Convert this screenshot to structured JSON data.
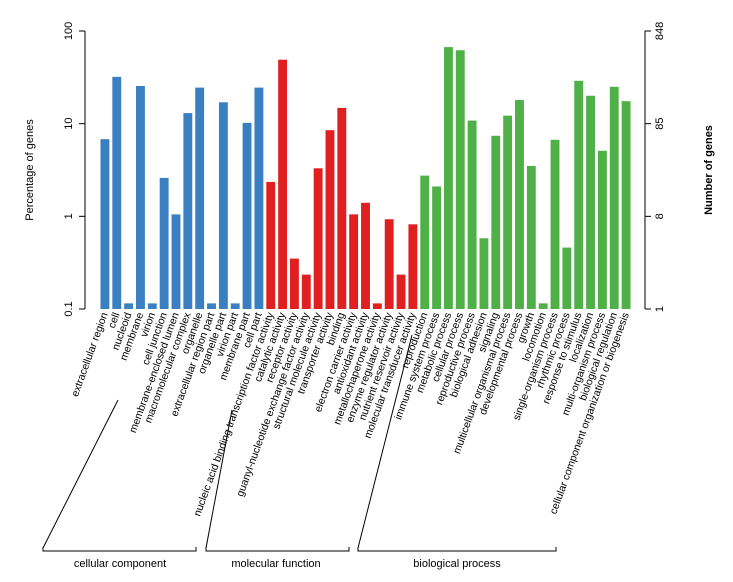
{
  "chart_data": {
    "type": "bar",
    "y_scale": "log",
    "ylabel_left": "Percentage of genes",
    "ylabel_right": "Number of genes",
    "ylim": [
      0.1,
      100
    ],
    "left_ticks": [
      "100",
      "10",
      "1",
      "0.1"
    ],
    "right_ticks": [
      "848",
      "85",
      "8",
      "1"
    ],
    "groups": [
      {
        "name": "cellular component",
        "color": "#3a7fc1",
        "categories": [
          "extracellular region",
          "cell",
          "nucleoid",
          "membrane",
          "virion",
          "cell junction",
          "membrane-enclosed lumen",
          "macromolecular complex",
          "organelle",
          "extracellular region part",
          "organelle part",
          "virion part",
          "membrane part",
          "cell part"
        ],
        "values": [
          6.8,
          32,
          0.115,
          25.5,
          0.115,
          2.6,
          1.05,
          13,
          24.5,
          0.115,
          17,
          0.115,
          10.2,
          24.5
        ]
      },
      {
        "name": "molecular function",
        "color": "#e02020",
        "categories": [
          "nucleic acid binding transcription factor activity",
          "catalytic activity",
          "receptor activity",
          "guanyl-nucleotide exchange factor activity",
          "structural molecule activity",
          "transporter activity",
          "binding",
          "electron carrier activity",
          "antioxidant activity",
          "metallochaperone activity",
          "enzyme regulator activity",
          "nutrient reservoir activity",
          "molecular transducer activity"
        ],
        "values": [
          2.35,
          49,
          0.35,
          0.235,
          3.3,
          8.5,
          14.8,
          1.05,
          1.4,
          0.115,
          0.93,
          0.235,
          0.82
        ]
      },
      {
        "name": "biological process",
        "color": "#4fb048",
        "categories": [
          "reproduction",
          "immune system process",
          "metabolic process",
          "cellular process",
          "reproductive process",
          "biological adhesion",
          "signaling",
          "multicellular organismal process",
          "developmental process",
          "growth",
          "locomotion",
          "single-organism process",
          "rhythmic process",
          "response to stimulus",
          "localization",
          "multi-organism process",
          "biological regulation",
          "cellular component organization or biogenesis"
        ],
        "values": [
          2.75,
          2.1,
          67,
          62,
          10.8,
          0.58,
          7.4,
          12.2,
          18,
          3.5,
          0.115,
          6.7,
          0.46,
          29,
          20,
          5.1,
          25,
          17.5
        ]
      }
    ]
  }
}
